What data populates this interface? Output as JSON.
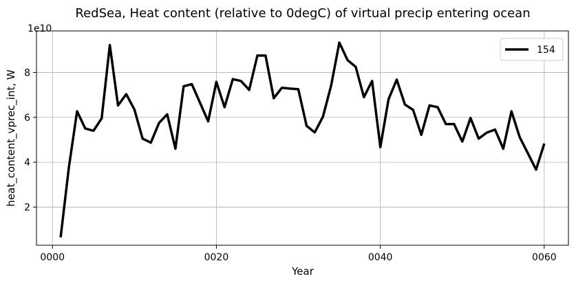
{
  "chart_data": {
    "type": "line",
    "title": "RedSea, Heat content (relative to 0degC) of virtual precip entering ocean",
    "xlabel": "Year",
    "ylabel": "heat_content_vprec_int, W",
    "y_multiplier_label": "1e10",
    "xlim": [
      -1.95,
      62.95
    ],
    "ylim": [
      0.3,
      9.85
    ],
    "x_ticks": [
      0,
      20,
      40,
      60
    ],
    "x_tick_labels": [
      "0000",
      "0020",
      "0040",
      "0060"
    ],
    "y_ticks": [
      2,
      4,
      6,
      8
    ],
    "y_tick_labels": [
      "2",
      "4",
      "6",
      "8"
    ],
    "grid": true,
    "legend_position": "top-right",
    "series": [
      {
        "name": "154",
        "color": "#000000",
        "x": [
          1,
          2,
          3,
          4,
          5,
          6,
          7,
          8,
          9,
          10,
          11,
          12,
          13,
          14,
          15,
          16,
          17,
          18,
          19,
          20,
          21,
          22,
          23,
          24,
          25,
          26,
          27,
          28,
          29,
          30,
          31,
          32,
          33,
          34,
          35,
          36,
          37,
          38,
          39,
          40,
          41,
          42,
          43,
          44,
          45,
          46,
          47,
          48,
          49,
          50,
          51,
          52,
          53,
          54,
          55,
          56,
          57,
          58,
          59,
          60
        ],
        "values": [
          0.65,
          3.75,
          6.27,
          5.5,
          5.4,
          5.95,
          9.22,
          6.53,
          7.03,
          6.35,
          5.05,
          4.87,
          5.75,
          6.13,
          4.6,
          7.38,
          7.48,
          6.65,
          5.82,
          7.58,
          6.45,
          7.7,
          7.62,
          7.22,
          8.75,
          8.75,
          6.85,
          7.32,
          7.28,
          7.25,
          5.62,
          5.33,
          6.03,
          7.42,
          9.33,
          8.55,
          8.25,
          6.9,
          7.62,
          4.67,
          6.8,
          7.68,
          6.57,
          6.33,
          5.22,
          6.53,
          6.45,
          5.7,
          5.7,
          4.92,
          5.97,
          5.05,
          5.32,
          5.45,
          4.6,
          6.27,
          5.12,
          4.4,
          3.67,
          4.83
        ]
      }
    ]
  }
}
